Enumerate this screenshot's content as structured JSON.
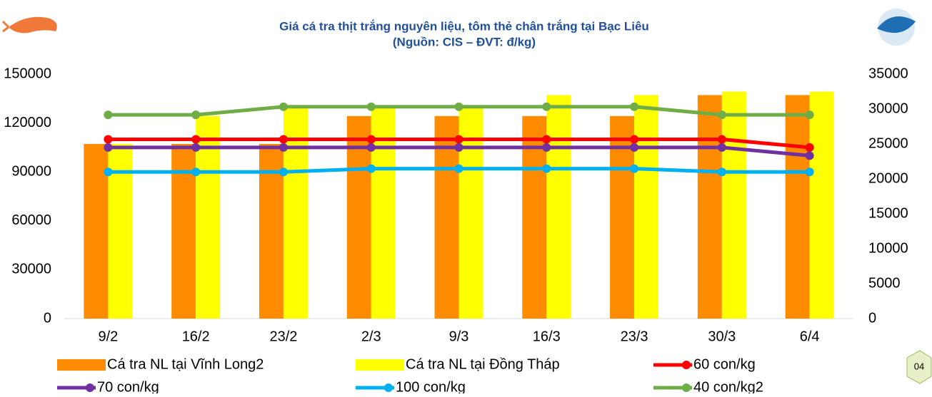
{
  "chart_data": {
    "type": "bar-line",
    "title": "Giá cá tra thịt trắng nguyên liệu, tôm thẻ chân trắng tại Bạc Liêu",
    "subtitle": "(Nguồn: CIS – ĐVT: đ/kg)",
    "categories": [
      "9/2",
      "16/2",
      "23/2",
      "2/3",
      "9/3",
      "16/3",
      "23/3",
      "30/3",
      "6/4"
    ],
    "ylim": [
      0,
      150000
    ],
    "yticks": [
      0,
      30000,
      60000,
      90000,
      120000,
      150000
    ],
    "y2lim": [
      0,
      35000
    ],
    "y2ticks": [
      0,
      5000,
      10000,
      15000,
      20000,
      25000,
      30000,
      35000
    ],
    "grid": false,
    "series": [
      {
        "name": "Cá tra NL tại Vĩnh Long2",
        "type": "bar",
        "axis": "y2",
        "color": "#ff8c00",
        "values": [
          25000,
          25000,
          25000,
          29000,
          29000,
          29000,
          29000,
          32000,
          32000
        ]
      },
      {
        "name": "Cá tra NL tại Đồng Tháp",
        "type": "bar",
        "axis": "y2",
        "color": "#ffff00",
        "values": [
          25000,
          29000,
          30500,
          30500,
          30500,
          32000,
          32000,
          32500,
          32500
        ]
      },
      {
        "name": "60 con/kg",
        "type": "line",
        "color": "#ff0000",
        "values": [
          110000,
          110000,
          110000,
          110000,
          110000,
          110000,
          110000,
          110000,
          105000
        ]
      },
      {
        "name": "70 con/kg",
        "type": "line",
        "color": "#7030a0",
        "values": [
          105000,
          105000,
          105000,
          105000,
          105000,
          105000,
          105000,
          105000,
          100000
        ]
      },
      {
        "name": "100 con/kg",
        "type": "line",
        "color": "#00b0f0",
        "values": [
          90000,
          90000,
          90000,
          92000,
          92000,
          92000,
          92000,
          90000,
          90000
        ]
      },
      {
        "name": "40 con/kg2",
        "type": "line",
        "color": "#70ad47",
        "values": [
          125000,
          125000,
          130000,
          130000,
          130000,
          130000,
          130000,
          125000,
          125000
        ]
      }
    ]
  },
  "page_number": "04"
}
